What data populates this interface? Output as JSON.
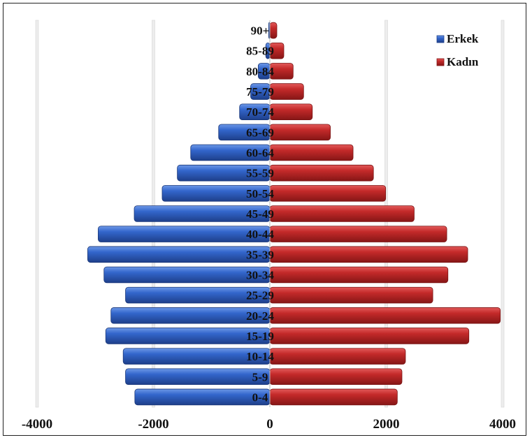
{
  "chart_data": {
    "type": "bar",
    "orientation": "horizontal",
    "subtype": "population-pyramid",
    "categories": [
      "0-4",
      "5-9",
      "10-14",
      "15-19",
      "20-24",
      "25-29",
      "30-34",
      "35-39",
      "40-44",
      "45-49",
      "50-54",
      "55-59",
      "60-64",
      "65-69",
      "70-74",
      "75-79",
      "80-84",
      "85-89",
      "90+"
    ],
    "series": [
      {
        "name": "Erkek",
        "color": "#2f5fbf",
        "values": [
          -2320,
          -2480,
          -2520,
          -2820,
          -2730,
          -2480,
          -2850,
          -3130,
          -2950,
          -2330,
          -1850,
          -1590,
          -1360,
          -880,
          -520,
          -330,
          -200,
          -70,
          -20
        ]
      },
      {
        "name": "Kadın",
        "color": "#c0282d",
        "values": [
          2190,
          2270,
          2330,
          3420,
          3960,
          2800,
          3060,
          3400,
          3040,
          2480,
          1990,
          1780,
          1430,
          1040,
          730,
          580,
          400,
          240,
          120
        ]
      }
    ],
    "xlim": [
      -4000,
      4000
    ],
    "xticks": [
      "-4000",
      "-2000",
      "0",
      "2000",
      "4000"
    ],
    "grid": true,
    "legend_position": "top-right",
    "title": "",
    "xlabel": "",
    "ylabel": ""
  }
}
